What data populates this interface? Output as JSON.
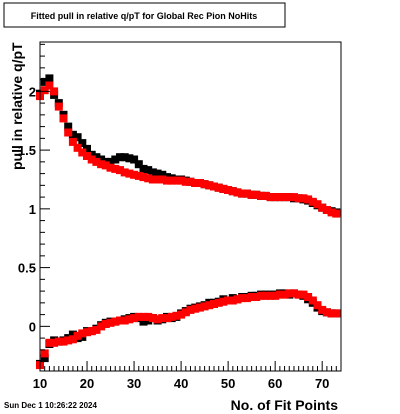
{
  "chart_data": {
    "type": "scatter",
    "title": "Fitted pull in relative q/pT for Global Rec Pion NoHits",
    "xlabel": "No. of Fit Points",
    "ylabel": "pull in relative q/pT",
    "xlim": [
      10,
      74
    ],
    "ylim": [
      -0.38,
      2.42
    ],
    "x_ticks": [
      10,
      20,
      30,
      40,
      50,
      60,
      70
    ],
    "y_ticks": [
      0,
      0.5,
      1,
      1.5,
      2
    ],
    "y_tick_labels": [
      "0",
      "0.5",
      "1",
      "1.5",
      "2"
    ],
    "grid": false,
    "legend": "none",
    "series": [
      {
        "color": "#000000",
        "points": [
          [
            10,
            -0.32
          ],
          [
            11,
            -0.27
          ],
          [
            12,
            -0.15
          ],
          [
            13,
            -0.12
          ],
          [
            14,
            -0.13
          ],
          [
            15,
            -0.12
          ],
          [
            16,
            -0.1
          ],
          [
            17,
            -0.07
          ],
          [
            18,
            -0.1
          ],
          [
            19,
            -0.09
          ],
          [
            20,
            -0.04
          ],
          [
            21,
            -0.04
          ],
          [
            22,
            -0.02
          ],
          [
            23,
            0.01
          ],
          [
            24,
            0.03
          ],
          [
            25,
            0.04
          ],
          [
            26,
            0.04
          ],
          [
            27,
            0.05
          ],
          [
            28,
            0.06
          ],
          [
            29,
            0.07
          ],
          [
            30,
            0.08
          ],
          [
            31,
            0.07
          ],
          [
            32,
            0.04
          ],
          [
            33,
            0.05
          ],
          [
            34,
            0.07
          ],
          [
            35,
            0.05
          ],
          [
            36,
            0.06
          ],
          [
            37,
            0.08
          ],
          [
            38,
            0.07
          ],
          [
            39,
            0.08
          ],
          [
            40,
            0.11
          ],
          [
            41,
            0.13
          ],
          [
            42,
            0.15
          ],
          [
            43,
            0.16
          ],
          [
            44,
            0.17
          ],
          [
            45,
            0.18
          ],
          [
            46,
            0.2
          ],
          [
            47,
            0.2
          ],
          [
            48,
            0.21
          ],
          [
            49,
            0.23
          ],
          [
            50,
            0.22
          ],
          [
            51,
            0.24
          ],
          [
            52,
            0.23
          ],
          [
            53,
            0.25
          ],
          [
            54,
            0.25
          ],
          [
            55,
            0.26
          ],
          [
            56,
            0.26
          ],
          [
            57,
            0.27
          ],
          [
            58,
            0.27
          ],
          [
            59,
            0.27
          ],
          [
            60,
            0.27
          ],
          [
            61,
            0.28
          ],
          [
            62,
            0.28
          ],
          [
            63,
            0.27
          ],
          [
            64,
            0.28
          ],
          [
            65,
            0.27
          ],
          [
            66,
            0.26
          ],
          [
            67,
            0.23
          ],
          [
            68,
            0.2
          ],
          [
            69,
            0.16
          ],
          [
            70,
            0.13
          ],
          [
            71,
            0.12
          ],
          [
            72,
            0.11
          ],
          [
            73,
            0.11
          ]
        ]
      },
      {
        "color": "#000000",
        "points": [
          [
            10,
            1.98
          ],
          [
            11,
            2.08
          ],
          [
            12,
            2.11
          ],
          [
            13,
            1.97
          ],
          [
            14,
            1.9
          ],
          [
            15,
            1.8
          ],
          [
            16,
            1.7
          ],
          [
            17,
            1.63
          ],
          [
            18,
            1.61
          ],
          [
            19,
            1.56
          ],
          [
            20,
            1.51
          ],
          [
            21,
            1.46
          ],
          [
            22,
            1.44
          ],
          [
            23,
            1.42
          ],
          [
            24,
            1.4
          ],
          [
            25,
            1.4
          ],
          [
            26,
            1.42
          ],
          [
            27,
            1.44
          ],
          [
            28,
            1.44
          ],
          [
            29,
            1.43
          ],
          [
            30,
            1.42
          ],
          [
            31,
            1.38
          ],
          [
            32,
            1.34
          ],
          [
            33,
            1.33
          ],
          [
            34,
            1.31
          ],
          [
            35,
            1.3
          ],
          [
            36,
            1.29
          ],
          [
            37,
            1.27
          ],
          [
            38,
            1.26
          ],
          [
            39,
            1.25
          ],
          [
            40,
            1.25
          ],
          [
            41,
            1.24
          ],
          [
            42,
            1.23
          ],
          [
            43,
            1.22
          ],
          [
            44,
            1.22
          ],
          [
            45,
            1.21
          ],
          [
            46,
            1.2
          ],
          [
            47,
            1.19
          ],
          [
            48,
            1.18
          ],
          [
            49,
            1.17
          ],
          [
            50,
            1.16
          ],
          [
            51,
            1.15
          ],
          [
            52,
            1.14
          ],
          [
            53,
            1.13
          ],
          [
            54,
            1.13
          ],
          [
            55,
            1.12
          ],
          [
            56,
            1.12
          ],
          [
            57,
            1.11
          ],
          [
            58,
            1.11
          ],
          [
            59,
            1.1
          ],
          [
            60,
            1.1
          ],
          [
            61,
            1.1
          ],
          [
            62,
            1.1
          ],
          [
            63,
            1.1
          ],
          [
            64,
            1.09
          ],
          [
            65,
            1.09
          ],
          [
            66,
            1.08
          ],
          [
            67,
            1.07
          ],
          [
            68,
            1.05
          ],
          [
            69,
            1.03
          ],
          [
            70,
            1.01
          ],
          [
            71,
            0.99
          ],
          [
            72,
            0.98
          ],
          [
            73,
            0.97
          ]
        ]
      },
      {
        "color": "#ff0000",
        "points": [
          [
            10,
            -0.33
          ],
          [
            11,
            -0.23
          ],
          [
            12,
            -0.14
          ],
          [
            13,
            -0.14
          ],
          [
            14,
            -0.13
          ],
          [
            15,
            -0.13
          ],
          [
            16,
            -0.12
          ],
          [
            17,
            -0.11
          ],
          [
            18,
            -0.08
          ],
          [
            19,
            -0.06
          ],
          [
            20,
            -0.05
          ],
          [
            21,
            -0.04
          ],
          [
            22,
            -0.03
          ],
          [
            23,
            0.0
          ],
          [
            24,
            0.02
          ],
          [
            25,
            0.03
          ],
          [
            26,
            0.04
          ],
          [
            27,
            0.05
          ],
          [
            28,
            0.05
          ],
          [
            29,
            0.06
          ],
          [
            30,
            0.07
          ],
          [
            31,
            0.08
          ],
          [
            32,
            0.08
          ],
          [
            33,
            0.08
          ],
          [
            34,
            0.07
          ],
          [
            35,
            0.06
          ],
          [
            36,
            0.07
          ],
          [
            37,
            0.07
          ],
          [
            38,
            0.08
          ],
          [
            39,
            0.09
          ],
          [
            40,
            0.1
          ],
          [
            41,
            0.12
          ],
          [
            42,
            0.14
          ],
          [
            43,
            0.15
          ],
          [
            44,
            0.16
          ],
          [
            45,
            0.17
          ],
          [
            46,
            0.18
          ],
          [
            47,
            0.19
          ],
          [
            48,
            0.2
          ],
          [
            49,
            0.21
          ],
          [
            50,
            0.22
          ],
          [
            51,
            0.22
          ],
          [
            52,
            0.23
          ],
          [
            53,
            0.24
          ],
          [
            54,
            0.24
          ],
          [
            55,
            0.25
          ],
          [
            56,
            0.25
          ],
          [
            57,
            0.26
          ],
          [
            58,
            0.26
          ],
          [
            59,
            0.26
          ],
          [
            60,
            0.26
          ],
          [
            61,
            0.27
          ],
          [
            62,
            0.27
          ],
          [
            63,
            0.28
          ],
          [
            64,
            0.28
          ],
          [
            65,
            0.27
          ],
          [
            66,
            0.27
          ],
          [
            67,
            0.25
          ],
          [
            68,
            0.22
          ],
          [
            69,
            0.18
          ],
          [
            70,
            0.14
          ],
          [
            71,
            0.12
          ],
          [
            72,
            0.11
          ],
          [
            73,
            0.11
          ]
        ]
      },
      {
        "color": "#ff0000",
        "points": [
          [
            10,
            1.96
          ],
          [
            11,
            2.01
          ],
          [
            12,
            2.05
          ],
          [
            13,
            2.0
          ],
          [
            14,
            1.87
          ],
          [
            15,
            1.77
          ],
          [
            16,
            1.65
          ],
          [
            17,
            1.57
          ],
          [
            18,
            1.52
          ],
          [
            19,
            1.48
          ],
          [
            20,
            1.45
          ],
          [
            21,
            1.42
          ],
          [
            22,
            1.4
          ],
          [
            23,
            1.38
          ],
          [
            24,
            1.37
          ],
          [
            25,
            1.35
          ],
          [
            26,
            1.34
          ],
          [
            27,
            1.33
          ],
          [
            28,
            1.31
          ],
          [
            29,
            1.3
          ],
          [
            30,
            1.29
          ],
          [
            31,
            1.28
          ],
          [
            32,
            1.27
          ],
          [
            33,
            1.26
          ],
          [
            34,
            1.25
          ],
          [
            35,
            1.25
          ],
          [
            36,
            1.25
          ],
          [
            37,
            1.24
          ],
          [
            38,
            1.24
          ],
          [
            39,
            1.24
          ],
          [
            40,
            1.24
          ],
          [
            41,
            1.23
          ],
          [
            42,
            1.23
          ],
          [
            43,
            1.22
          ],
          [
            44,
            1.22
          ],
          [
            45,
            1.21
          ],
          [
            46,
            1.2
          ],
          [
            47,
            1.19
          ],
          [
            48,
            1.18
          ],
          [
            49,
            1.17
          ],
          [
            50,
            1.16
          ],
          [
            51,
            1.15
          ],
          [
            52,
            1.14
          ],
          [
            53,
            1.13
          ],
          [
            54,
            1.13
          ],
          [
            55,
            1.12
          ],
          [
            56,
            1.12
          ],
          [
            57,
            1.11
          ],
          [
            58,
            1.11
          ],
          [
            59,
            1.1
          ],
          [
            60,
            1.1
          ],
          [
            61,
            1.1
          ],
          [
            62,
            1.1
          ],
          [
            63,
            1.1
          ],
          [
            64,
            1.1
          ],
          [
            65,
            1.09
          ],
          [
            66,
            1.09
          ],
          [
            67,
            1.08
          ],
          [
            68,
            1.06
          ],
          [
            69,
            1.04
          ],
          [
            70,
            1.01
          ],
          [
            71,
            0.99
          ],
          [
            72,
            0.97
          ],
          [
            73,
            0.96
          ]
        ]
      }
    ]
  },
  "timestamp": "Sun Dec  1 10:26:22 2024"
}
